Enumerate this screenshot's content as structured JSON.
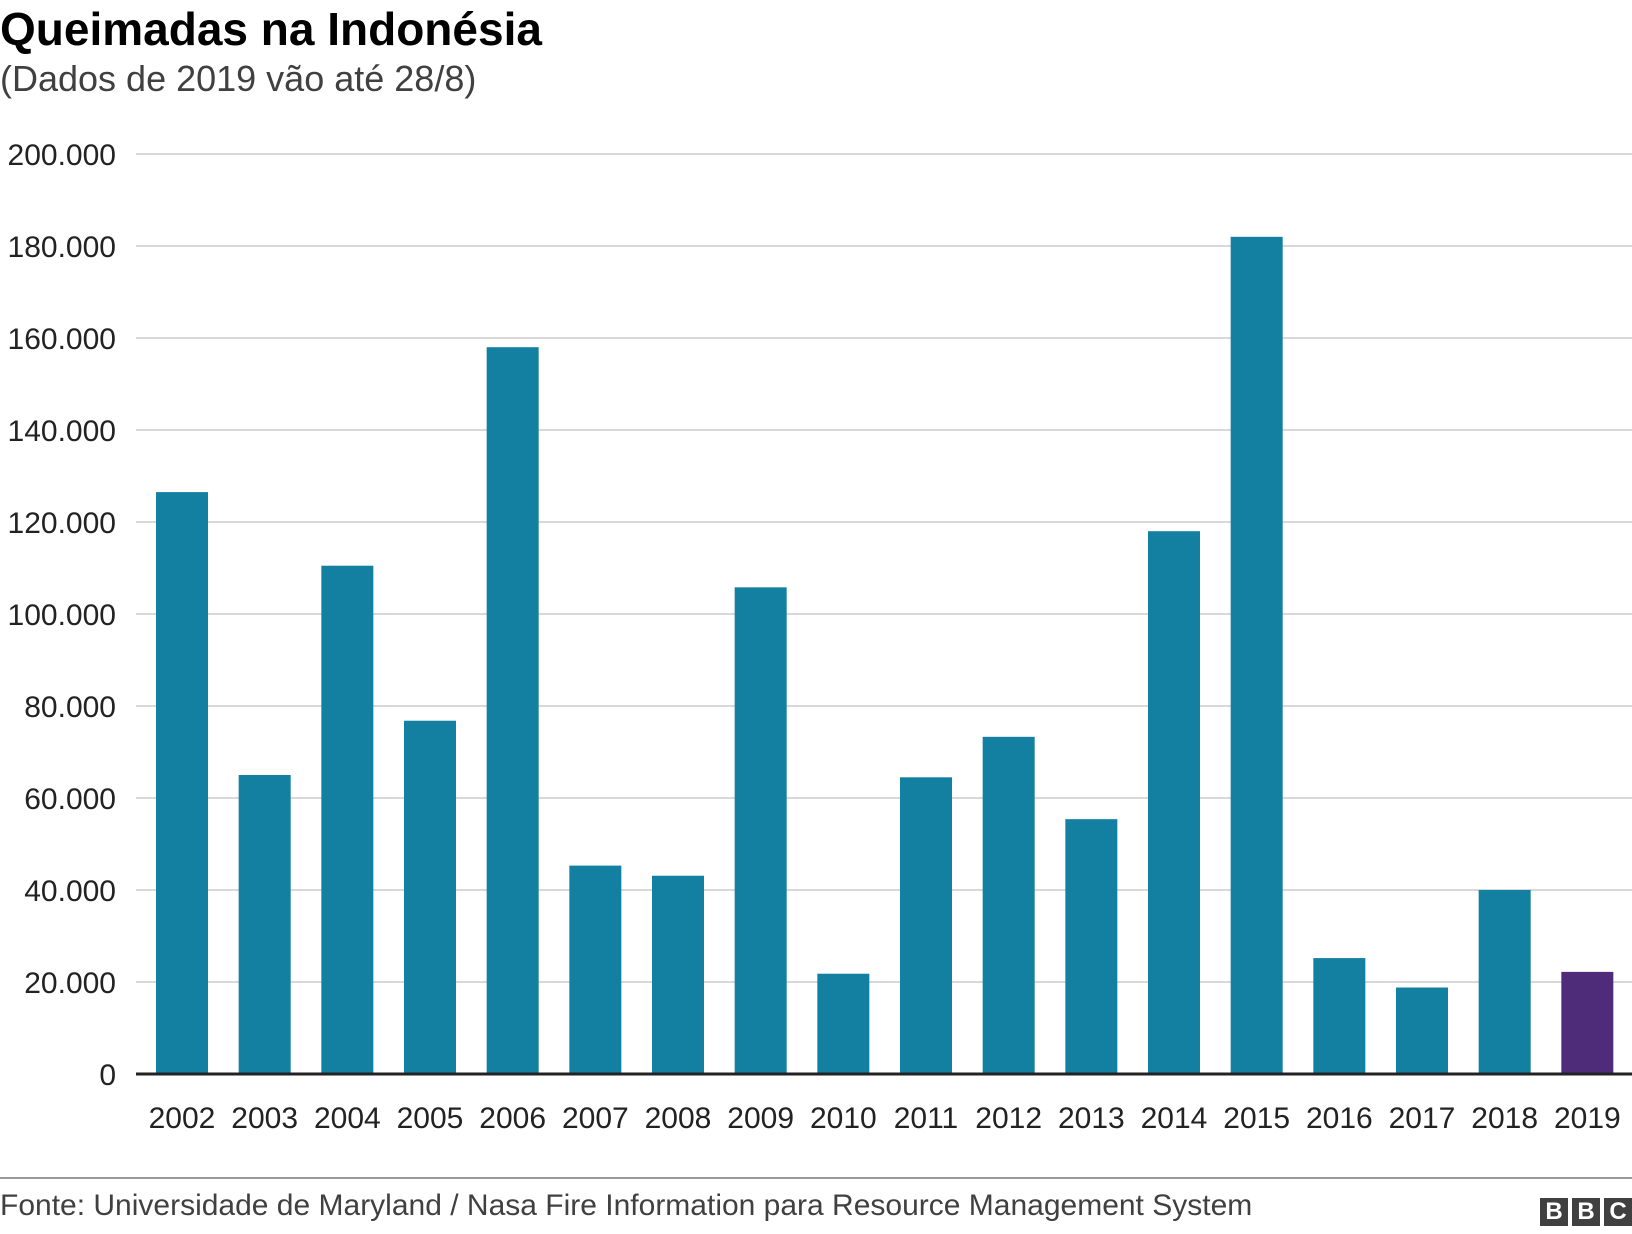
{
  "header": {
    "title": "Queimadas na Indonésia",
    "subtitle": "(Dados de 2019 vão até 28/8)"
  },
  "footer": {
    "source": "Fonte: Universidade de Maryland / Nasa Fire Information para Resource Management System",
    "logo_letters": [
      "B",
      "B",
      "C"
    ]
  },
  "colors": {
    "bar": "#1380A1",
    "highlight": "#4F2C7A",
    "grid": "#cbcbcb",
    "axis": "#222222"
  },
  "chart_data": {
    "type": "bar",
    "title": "Queimadas na Indonésia",
    "subtitle": "(Dados de 2019 vão até 28/8)",
    "xlabel": "",
    "ylabel": "",
    "categories": [
      "2002",
      "2003",
      "2004",
      "2005",
      "2006",
      "2007",
      "2008",
      "2009",
      "2010",
      "2011",
      "2012",
      "2013",
      "2014",
      "2015",
      "2016",
      "2017",
      "2018",
      "2019"
    ],
    "values": [
      126500,
      65000,
      110500,
      76800,
      158000,
      45300,
      43100,
      105800,
      21800,
      64500,
      73300,
      55400,
      118000,
      182000,
      25200,
      18800,
      40000,
      22200
    ],
    "highlight_category": "2019",
    "ylim": [
      0,
      200000
    ],
    "yticks": [
      0,
      20000,
      40000,
      60000,
      80000,
      100000,
      120000,
      140000,
      160000,
      180000,
      200000
    ],
    "ytick_labels": [
      "0",
      "20.000",
      "40.000",
      "60.000",
      "80.000",
      "100.000",
      "120.000",
      "140.000",
      "160.000",
      "180.000",
      "200.000"
    ],
    "grid": true,
    "legend": "none"
  }
}
